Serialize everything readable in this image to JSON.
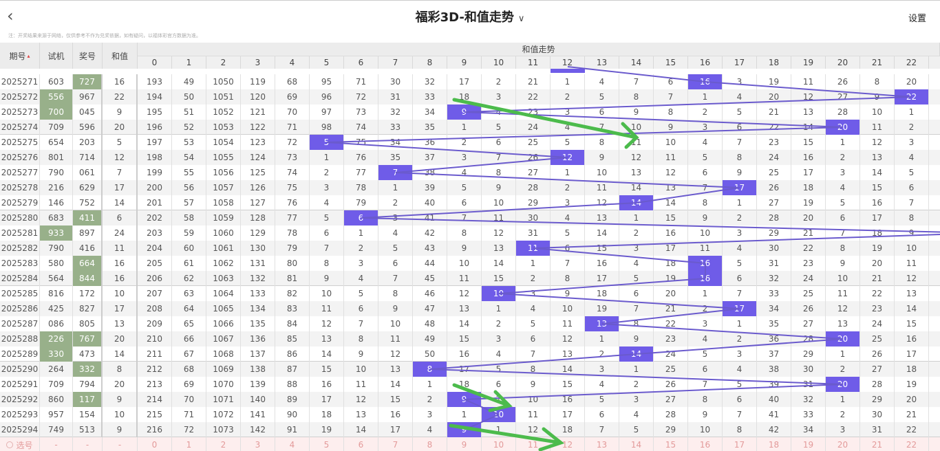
{
  "header": {
    "back_icon": "chevron-left-icon",
    "title": "福彩3D-和值走势",
    "title_icon": "chevron-down-icon",
    "settings_label": "设置"
  },
  "note": "注：开奖结果来源于网络，仅供参考不作为兑奖依据，如有疑问，以福体彩官方数据为准。",
  "columns": {
    "period": "期号",
    "period_sort_icon": "sort-icon",
    "test": "试机",
    "prize": "奖号",
    "sum": "和值",
    "trend_group": "和值走势",
    "trend": [
      "0",
      "1",
      "2",
      "3",
      "4",
      "5",
      "6",
      "7",
      "8",
      "9",
      "10",
      "11",
      "12",
      "13",
      "14",
      "15",
      "16",
      "17",
      "18",
      "19",
      "20",
      "21",
      "22"
    ]
  },
  "colors": {
    "hit": "#6f5ce8",
    "green": "#98b08a",
    "line": "#6a5acd",
    "annotation_arrow": "#4cbb4c"
  },
  "partial_top_row_sum": 12,
  "rows": [
    {
      "p": "2025271",
      "t": "603",
      "a": "727",
      "s": 16,
      "tg": 0,
      "ag": 1,
      "c": [
        193,
        49,
        1050,
        119,
        68,
        95,
        71,
        30,
        32,
        17,
        2,
        21,
        1,
        4,
        7,
        6,
        16,
        3,
        19,
        11,
        26,
        8,
        20
      ]
    },
    {
      "p": "2025272",
      "t": "556",
      "a": "967",
      "s": 22,
      "tg": 1,
      "ag": 0,
      "c": [
        194,
        50,
        1051,
        120,
        69,
        96,
        72,
        31,
        33,
        18,
        3,
        22,
        2,
        5,
        8,
        7,
        1,
        4,
        20,
        12,
        27,
        9,
        22
      ]
    },
    {
      "p": "2025273",
      "t": "700",
      "a": "045",
      "s": 9,
      "tg": 1,
      "ag": 0,
      "c": [
        195,
        51,
        1052,
        121,
        70,
        97,
        73,
        32,
        34,
        9,
        4,
        23,
        3,
        6,
        9,
        8,
        2,
        5,
        21,
        13,
        28,
        10,
        1
      ]
    },
    {
      "p": "2025274",
      "t": "709",
      "a": "596",
      "s": 20,
      "tg": 0,
      "ag": 0,
      "c": [
        196,
        52,
        1053,
        122,
        71,
        98,
        74,
        33,
        35,
        1,
        5,
        24,
        4,
        7,
        10,
        9,
        3,
        6,
        22,
        14,
        20,
        11,
        2
      ]
    },
    {
      "p": "2025275",
      "t": "654",
      "a": "203",
      "s": 5,
      "tg": 0,
      "ag": 0,
      "c": [
        197,
        53,
        1054,
        123,
        72,
        5,
        75,
        34,
        36,
        2,
        6,
        25,
        5,
        8,
        11,
        10,
        4,
        7,
        23,
        15,
        1,
        12,
        3
      ]
    },
    {
      "p": "2025276",
      "t": "801",
      "a": "714",
      "s": 12,
      "tg": 0,
      "ag": 0,
      "c": [
        198,
        54,
        1055,
        124,
        73,
        1,
        76,
        35,
        37,
        3,
        7,
        26,
        12,
        9,
        12,
        11,
        5,
        8,
        24,
        16,
        2,
        13,
        4
      ]
    },
    {
      "p": "2025277",
      "t": "790",
      "a": "061",
      "s": 7,
      "tg": 0,
      "ag": 0,
      "c": [
        199,
        55,
        1056,
        125,
        74,
        2,
        77,
        7,
        38,
        4,
        8,
        27,
        1,
        10,
        13,
        12,
        6,
        9,
        25,
        17,
        3,
        14,
        5
      ]
    },
    {
      "p": "2025278",
      "t": "216",
      "a": "629",
      "s": 17,
      "tg": 0,
      "ag": 0,
      "c": [
        200,
        56,
        1057,
        126,
        75,
        3,
        78,
        1,
        39,
        5,
        9,
        28,
        2,
        11,
        14,
        13,
        7,
        17,
        26,
        18,
        4,
        15,
        6
      ]
    },
    {
      "p": "2025279",
      "t": "146",
      "a": "752",
      "s": 14,
      "tg": 0,
      "ag": 0,
      "c": [
        201,
        57,
        1058,
        127,
        76,
        4,
        79,
        2,
        40,
        6,
        10,
        29,
        3,
        12,
        14,
        14,
        8,
        1,
        27,
        19,
        5,
        16,
        7
      ]
    },
    {
      "p": "2025280",
      "t": "683",
      "a": "411",
      "s": 6,
      "tg": 0,
      "ag": 1,
      "c": [
        202,
        58,
        1059,
        128,
        77,
        5,
        6,
        3,
        41,
        7,
        11,
        30,
        4,
        13,
        1,
        15,
        9,
        2,
        28,
        20,
        6,
        17,
        8
      ]
    },
    {
      "p": "2025281",
      "t": "933",
      "a": "897",
      "s": 24,
      "tg": 1,
      "ag": 0,
      "c": [
        203,
        59,
        1060,
        129,
        78,
        6,
        1,
        4,
        42,
        8,
        12,
        31,
        5,
        14,
        2,
        16,
        10,
        3,
        29,
        21,
        7,
        18,
        9
      ]
    },
    {
      "p": "2025282",
      "t": "790",
      "a": "416",
      "s": 11,
      "tg": 0,
      "ag": 0,
      "c": [
        204,
        60,
        1061,
        130,
        79,
        7,
        2,
        5,
        43,
        9,
        13,
        11,
        6,
        15,
        3,
        17,
        11,
        4,
        30,
        22,
        8,
        19,
        10
      ]
    },
    {
      "p": "2025283",
      "t": "580",
      "a": "664",
      "s": 16,
      "tg": 0,
      "ag": 1,
      "c": [
        205,
        61,
        1062,
        131,
        80,
        8,
        3,
        6,
        44,
        10,
        14,
        1,
        7,
        16,
        4,
        18,
        16,
        5,
        31,
        23,
        9,
        20,
        11
      ]
    },
    {
      "p": "2025284",
      "t": "564",
      "a": "844",
      "s": 16,
      "tg": 0,
      "ag": 1,
      "c": [
        206,
        62,
        1063,
        132,
        81,
        9,
        4,
        7,
        45,
        11,
        15,
        2,
        8,
        17,
        5,
        19,
        16,
        6,
        32,
        24,
        10,
        21,
        12
      ]
    },
    {
      "p": "2025285",
      "t": "816",
      "a": "172",
      "s": 10,
      "tg": 0,
      "ag": 0,
      "c": [
        207,
        63,
        1064,
        133,
        82,
        10,
        5,
        8,
        46,
        12,
        10,
        3,
        9,
        18,
        6,
        20,
        1,
        7,
        33,
        25,
        11,
        22,
        13
      ]
    },
    {
      "p": "2025286",
      "t": "425",
      "a": "827",
      "s": 17,
      "tg": 0,
      "ag": 0,
      "c": [
        208,
        64,
        1065,
        134,
        83,
        11,
        6,
        9,
        47,
        13,
        1,
        4,
        10,
        19,
        7,
        21,
        2,
        17,
        34,
        26,
        12,
        23,
        14
      ]
    },
    {
      "p": "2025287",
      "t": "086",
      "a": "805",
      "s": 13,
      "tg": 0,
      "ag": 0,
      "c": [
        209,
        65,
        1066,
        135,
        84,
        12,
        7,
        10,
        48,
        14,
        2,
        5,
        11,
        13,
        8,
        22,
        3,
        1,
        35,
        27,
        13,
        24,
        15
      ]
    },
    {
      "p": "2025288",
      "t": "226",
      "a": "767",
      "s": 20,
      "tg": 1,
      "ag": 1,
      "c": [
        210,
        66,
        1067,
        136,
        85,
        13,
        8,
        11,
        49,
        15,
        3,
        6,
        12,
        1,
        9,
        23,
        4,
        2,
        36,
        28,
        20,
        25,
        16
      ]
    },
    {
      "p": "2025289",
      "t": "330",
      "a": "473",
      "s": 14,
      "tg": 1,
      "ag": 0,
      "c": [
        211,
        67,
        1068,
        137,
        86,
        14,
        9,
        12,
        50,
        16,
        4,
        7,
        13,
        2,
        14,
        24,
        5,
        3,
        37,
        29,
        1,
        26,
        17
      ]
    },
    {
      "p": "2025290",
      "t": "264",
      "a": "332",
      "s": 8,
      "tg": 0,
      "ag": 1,
      "c": [
        212,
        68,
        1069,
        138,
        87,
        15,
        10,
        13,
        8,
        17,
        5,
        8,
        14,
        3,
        1,
        25,
        6,
        4,
        38,
        30,
        2,
        27,
        18
      ]
    },
    {
      "p": "2025291",
      "t": "709",
      "a": "794",
      "s": 20,
      "tg": 0,
      "ag": 0,
      "c": [
        213,
        69,
        1070,
        139,
        88,
        16,
        11,
        14,
        1,
        18,
        6,
        9,
        15,
        4,
        2,
        26,
        7,
        5,
        39,
        31,
        20,
        28,
        19
      ]
    },
    {
      "p": "2025292",
      "t": "860",
      "a": "117",
      "s": 9,
      "tg": 0,
      "ag": 1,
      "c": [
        214,
        70,
        1071,
        140,
        89,
        17,
        12,
        15,
        2,
        9,
        7,
        10,
        16,
        5,
        3,
        27,
        8,
        6,
        40,
        32,
        1,
        29,
        20
      ]
    },
    {
      "p": "2025293",
      "t": "957",
      "a": "154",
      "s": 10,
      "tg": 0,
      "ag": 0,
      "c": [
        215,
        71,
        1072,
        141,
        90,
        18,
        13,
        16,
        3,
        1,
        10,
        11,
        17,
        6,
        4,
        28,
        9,
        7,
        41,
        33,
        2,
        30,
        21
      ]
    },
    {
      "p": "2025294",
      "t": "749",
      "a": "513",
      "s": 9,
      "tg": 0,
      "ag": 0,
      "c": [
        216,
        72,
        1073,
        142,
        91,
        19,
        14,
        17,
        4,
        9,
        1,
        12,
        18,
        7,
        5,
        29,
        10,
        8,
        42,
        34,
        3,
        31,
        22
      ]
    }
  ],
  "footer": {
    "radio_icon": "radio-icon",
    "label": "选号",
    "dash": "-",
    "numbers": [
      "0",
      "1",
      "2",
      "3",
      "4",
      "5",
      "6",
      "7",
      "8",
      "9",
      "10",
      "11",
      "12",
      "13",
      "14",
      "15",
      "16",
      "17",
      "18",
      "19",
      "20",
      "21",
      "22"
    ]
  }
}
